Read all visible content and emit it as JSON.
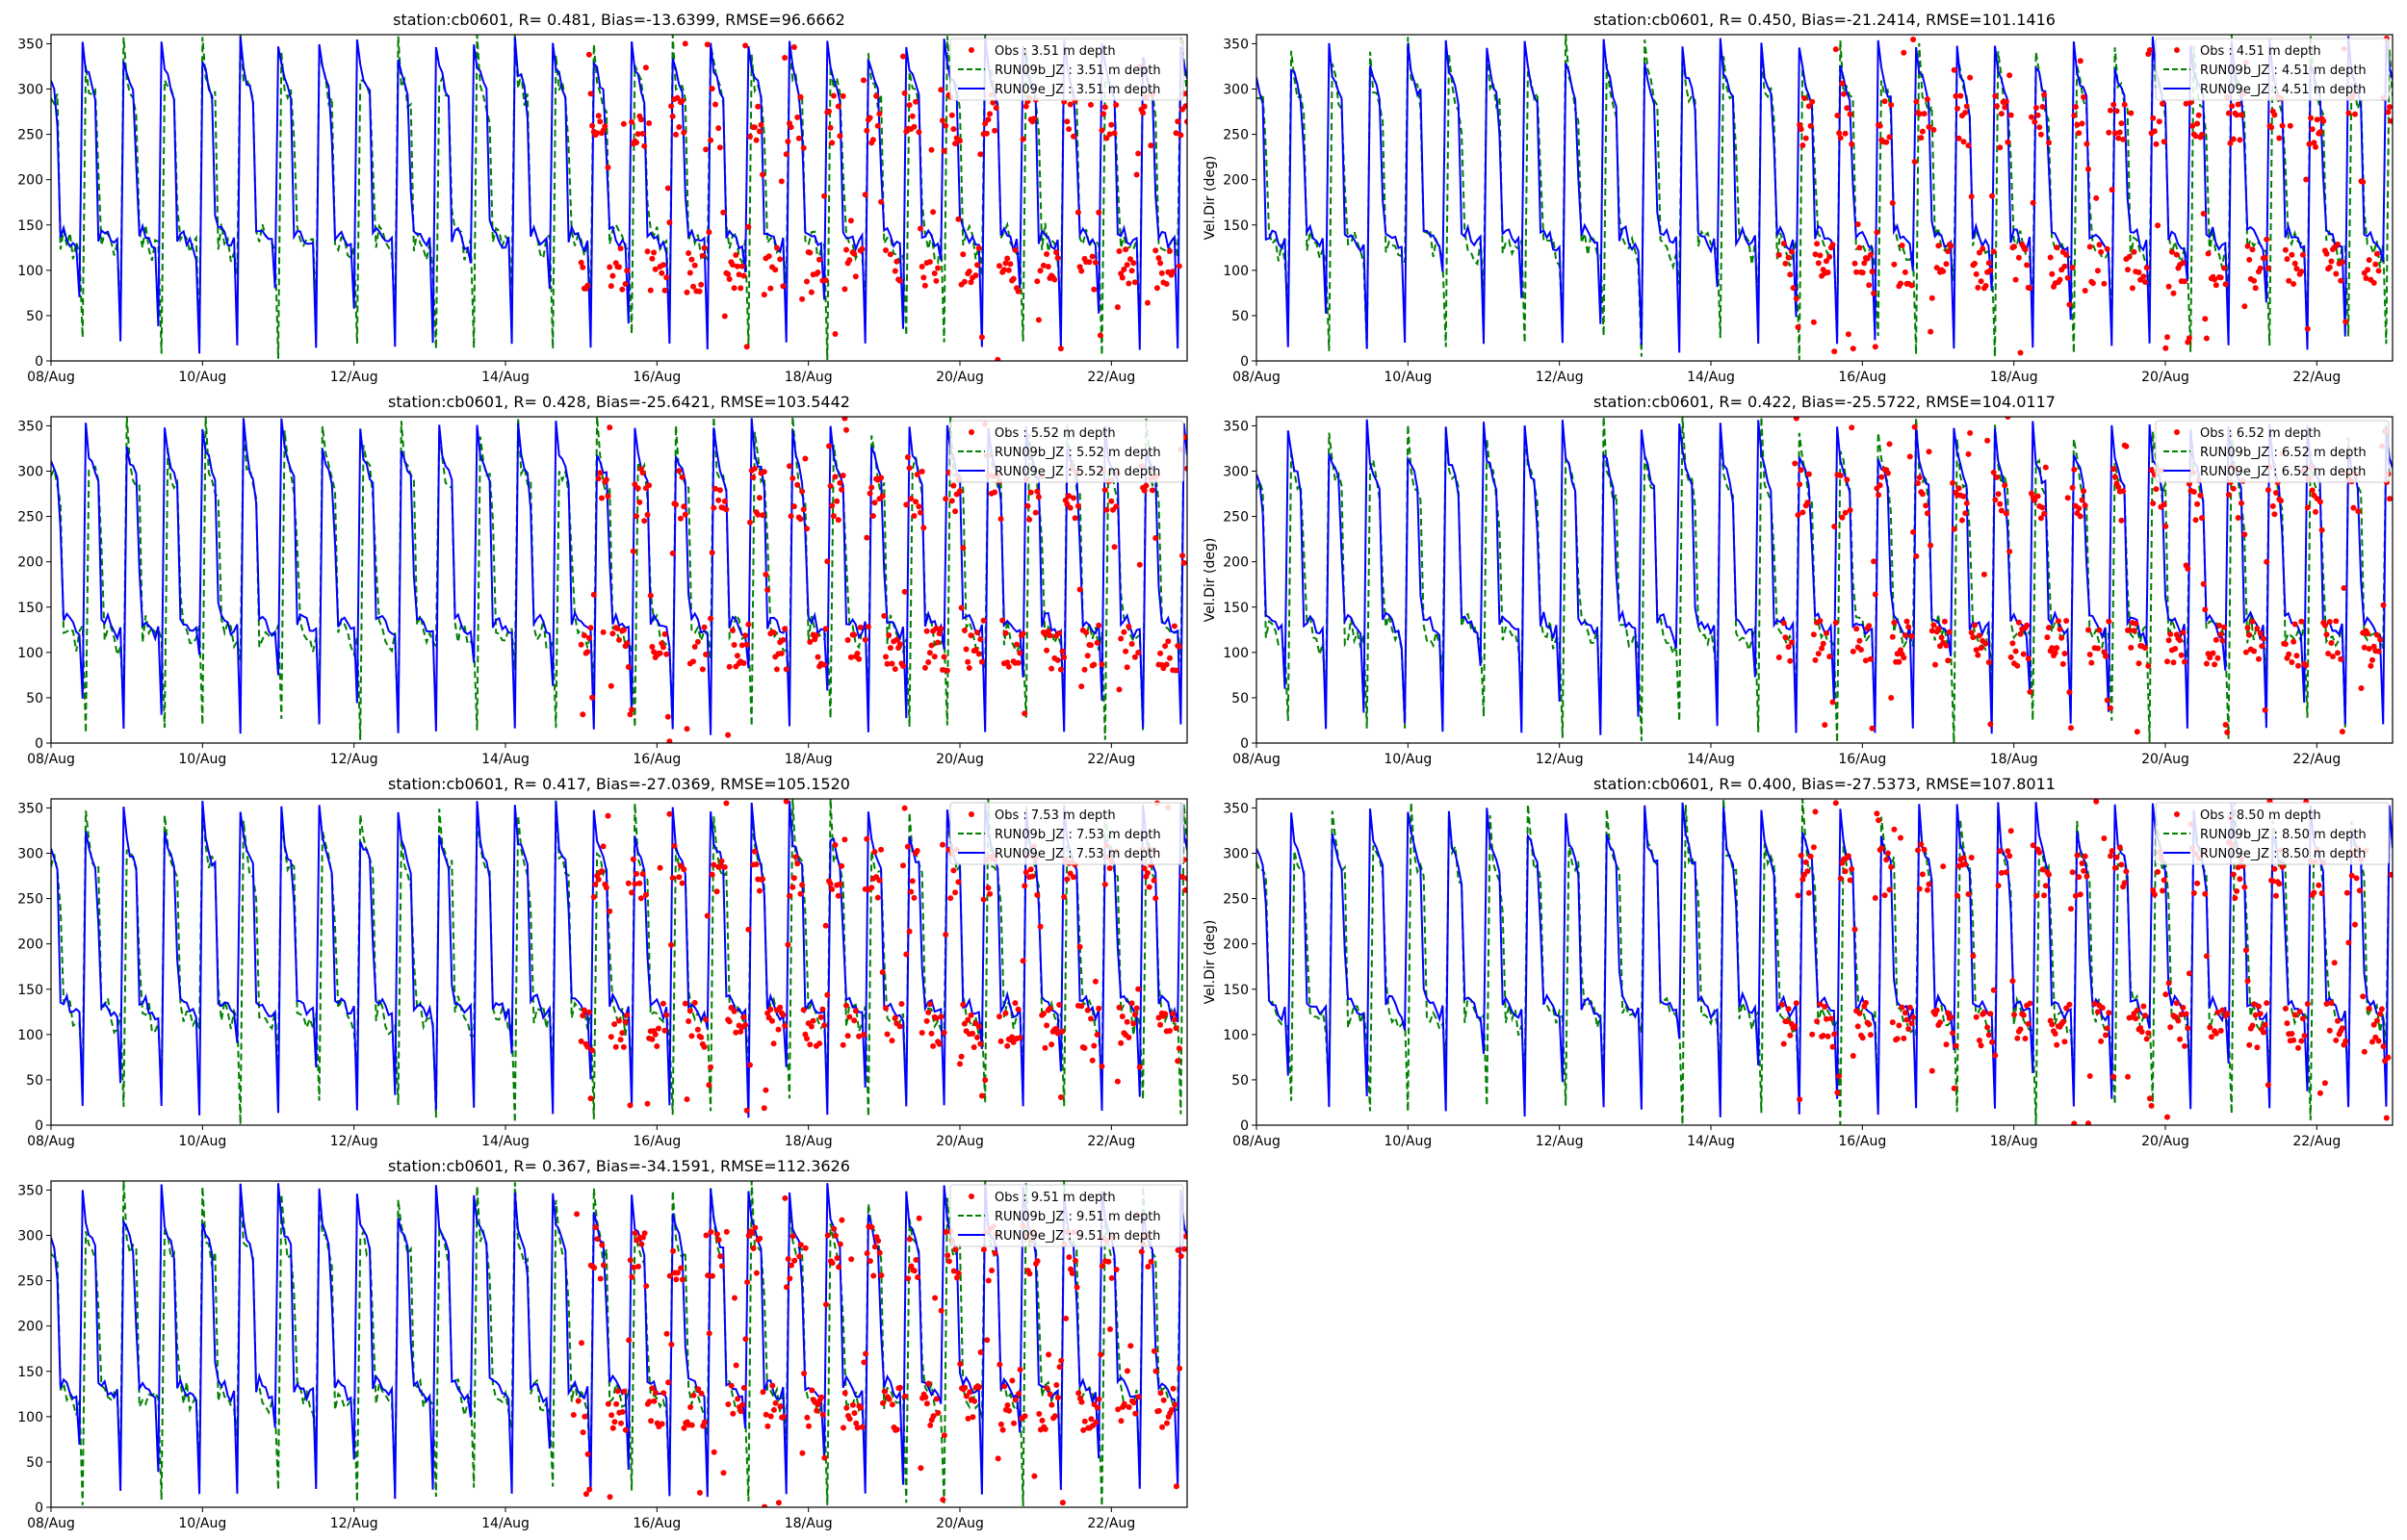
{
  "figure": {
    "background": "#ffffff"
  },
  "colors": {
    "obs": "#ff0000",
    "run09b": "#008000",
    "run09e": "#0000ff",
    "axis": "#000000"
  },
  "chart_data": [
    {
      "type": "line",
      "title": "station:cb0601, R= 0.481, Bias=-13.6399, RMSE=96.6662",
      "xlabel": "",
      "ylabel": "",
      "ylim": [
        0,
        360
      ],
      "yticks": [
        "0",
        "50",
        "100",
        "150",
        "200",
        "250",
        "300",
        "350"
      ],
      "xticks": [
        "08/Aug",
        "10/Aug",
        "12/Aug",
        "14/Aug",
        "16/Aug",
        "18/Aug",
        "20/Aug",
        "22/Aug"
      ],
      "xrange_days": [
        8,
        23
      ],
      "obs_start_day": 15.0,
      "legend": [
        "Obs : 3.51 m depth",
        "RUN09b_JZ : 3.51 m depth",
        "RUN09e_JZ : 3.51 m depth"
      ],
      "legend_position": "top-right",
      "series": [
        {
          "name": "Obs : 3.51 m depth",
          "style": "dots",
          "flood_deg": 265,
          "ebb_deg": 100
        },
        {
          "name": "RUN09b_JZ : 3.51 m depth",
          "style": "dashed",
          "flood_deg": 300,
          "ebb_deg": 130
        },
        {
          "name": "RUN09e_JZ : 3.51 m depth",
          "style": "solid",
          "flood_deg": 310,
          "ebb_deg": 135
        }
      ],
      "seed": 11
    },
    {
      "type": "line",
      "title": "station:cb0601, R= 0.450, Bias=-21.2414, RMSE=101.1416",
      "xlabel": "",
      "ylabel": "Vel.Dir (deg)",
      "ylim": [
        0,
        360
      ],
      "yticks": [
        "0",
        "50",
        "100",
        "150",
        "200",
        "250",
        "300",
        "350"
      ],
      "xticks": [
        "08/Aug",
        "10/Aug",
        "12/Aug",
        "14/Aug",
        "16/Aug",
        "18/Aug",
        "20/Aug",
        "22/Aug"
      ],
      "xrange_days": [
        8,
        23
      ],
      "obs_start_day": 14.9,
      "legend": [
        "Obs : 4.51 m depth",
        "RUN09b_JZ : 4.51 m depth",
        "RUN09e_JZ : 4.51 m depth"
      ],
      "legend_position": "top-right",
      "series": [
        {
          "name": "Obs : 4.51 m depth",
          "style": "dots",
          "flood_deg": 265,
          "ebb_deg": 105
        },
        {
          "name": "RUN09b_JZ : 4.51 m depth",
          "style": "dashed",
          "flood_deg": 295,
          "ebb_deg": 125
        },
        {
          "name": "RUN09e_JZ : 4.51 m depth",
          "style": "solid",
          "flood_deg": 305,
          "ebb_deg": 135
        }
      ],
      "seed": 23
    },
    {
      "type": "line",
      "title": "station:cb0601, R= 0.428, Bias=-25.6421, RMSE=103.5442",
      "xlabel": "",
      "ylabel": "",
      "ylim": [
        0,
        360
      ],
      "yticks": [
        "0",
        "50",
        "100",
        "150",
        "200",
        "250",
        "300",
        "350"
      ],
      "xticks": [
        "08/Aug",
        "10/Aug",
        "12/Aug",
        "14/Aug",
        "16/Aug",
        "18/Aug",
        "20/Aug",
        "22/Aug"
      ],
      "xrange_days": [
        8,
        23
      ],
      "obs_start_day": 15.0,
      "legend": [
        "Obs : 5.52 m depth",
        "RUN09b_JZ : 5.52 m depth",
        "RUN09e_JZ : 5.52 m depth"
      ],
      "legend_position": "top-right",
      "series": [
        {
          "name": "Obs : 5.52 m depth",
          "style": "dots",
          "flood_deg": 275,
          "ebb_deg": 105
        },
        {
          "name": "RUN09b_JZ : 5.52 m depth",
          "style": "dashed",
          "flood_deg": 295,
          "ebb_deg": 120
        },
        {
          "name": "RUN09e_JZ : 5.52 m depth",
          "style": "solid",
          "flood_deg": 305,
          "ebb_deg": 130
        }
      ],
      "seed": 37
    },
    {
      "type": "line",
      "title": "station:cb0601, R= 0.422, Bias=-25.5722, RMSE=104.0117",
      "xlabel": "",
      "ylabel": "Vel.Dir (deg)",
      "ylim": [
        0,
        360
      ],
      "yticks": [
        "0",
        "50",
        "100",
        "150",
        "200",
        "250",
        "300",
        "350"
      ],
      "xticks": [
        "08/Aug",
        "10/Aug",
        "12/Aug",
        "14/Aug",
        "16/Aug",
        "18/Aug",
        "20/Aug",
        "22/Aug"
      ],
      "xrange_days": [
        8,
        23
      ],
      "obs_start_day": 14.9,
      "legend": [
        "Obs : 6.52 m depth",
        "RUN09b_JZ : 6.52 m depth",
        "RUN09e_JZ : 6.52 m depth"
      ],
      "legend_position": "top-right",
      "series": [
        {
          "name": "Obs : 6.52 m depth",
          "style": "dots",
          "flood_deg": 275,
          "ebb_deg": 110
        },
        {
          "name": "RUN09b_JZ : 6.52 m depth",
          "style": "dashed",
          "flood_deg": 290,
          "ebb_deg": 120
        },
        {
          "name": "RUN09e_JZ : 6.52 m depth",
          "style": "solid",
          "flood_deg": 300,
          "ebb_deg": 130
        }
      ],
      "seed": 41
    },
    {
      "type": "line",
      "title": "station:cb0601, R= 0.417, Bias=-27.0369, RMSE=105.1520",
      "xlabel": "",
      "ylabel": "",
      "ylim": [
        0,
        360
      ],
      "yticks": [
        "0",
        "50",
        "100",
        "150",
        "200",
        "250",
        "300",
        "350"
      ],
      "xticks": [
        "08/Aug",
        "10/Aug",
        "12/Aug",
        "14/Aug",
        "16/Aug",
        "18/Aug",
        "20/Aug",
        "22/Aug"
      ],
      "xrange_days": [
        8,
        23
      ],
      "obs_start_day": 15.0,
      "legend": [
        "Obs : 7.53 m depth",
        "RUN09b_JZ : 7.53 m depth",
        "RUN09e_JZ : 7.53 m depth"
      ],
      "legend_position": "top-right",
      "series": [
        {
          "name": "Obs : 7.53 m depth",
          "style": "dots",
          "flood_deg": 280,
          "ebb_deg": 110
        },
        {
          "name": "RUN09b_JZ : 7.53 m depth",
          "style": "dashed",
          "flood_deg": 290,
          "ebb_deg": 120
        },
        {
          "name": "RUN09e_JZ : 7.53 m depth",
          "style": "solid",
          "flood_deg": 300,
          "ebb_deg": 130
        }
      ],
      "seed": 53
    },
    {
      "type": "line",
      "title": "station:cb0601, R= 0.400, Bias=-27.5373, RMSE=107.8011",
      "xlabel": "",
      "ylabel": "Vel.Dir (deg)",
      "ylim": [
        0,
        360
      ],
      "yticks": [
        "0",
        "50",
        "100",
        "150",
        "200",
        "250",
        "300",
        "350"
      ],
      "xticks": [
        "08/Aug",
        "10/Aug",
        "12/Aug",
        "14/Aug",
        "16/Aug",
        "18/Aug",
        "20/Aug",
        "22/Aug"
      ],
      "xrange_days": [
        8,
        23
      ],
      "obs_start_day": 14.9,
      "legend": [
        "Obs : 8.50 m depth",
        "RUN09b_JZ : 8.50 m depth",
        "RUN09e_JZ : 8.50 m depth"
      ],
      "legend_position": "top-right",
      "series": [
        {
          "name": "Obs : 8.50 m depth",
          "style": "dots",
          "flood_deg": 280,
          "ebb_deg": 110
        },
        {
          "name": "RUN09b_JZ : 8.50 m depth",
          "style": "dashed",
          "flood_deg": 290,
          "ebb_deg": 120
        },
        {
          "name": "RUN09e_JZ : 8.50 m depth",
          "style": "solid",
          "flood_deg": 300,
          "ebb_deg": 130
        }
      ],
      "seed": 67
    },
    {
      "type": "line",
      "title": "station:cb0601, R= 0.367, Bias=-34.1591, RMSE=112.3626",
      "xlabel": "",
      "ylabel": "",
      "ylim": [
        0,
        360
      ],
      "yticks": [
        "0",
        "50",
        "100",
        "150",
        "200",
        "250",
        "300",
        "350"
      ],
      "xticks": [
        "08/Aug",
        "10/Aug",
        "12/Aug",
        "14/Aug",
        "16/Aug",
        "18/Aug",
        "20/Aug",
        "22/Aug"
      ],
      "xrange_days": [
        8,
        23
      ],
      "obs_start_day": 14.9,
      "legend": [
        "Obs : 9.51 m depth",
        "RUN09b_JZ : 9.51 m depth",
        "RUN09e_JZ : 9.51 m depth"
      ],
      "legend_position": "top-right",
      "series": [
        {
          "name": "Obs : 9.51 m depth",
          "style": "dots",
          "flood_deg": 280,
          "ebb_deg": 110
        },
        {
          "name": "RUN09b_JZ : 9.51 m depth",
          "style": "dashed",
          "flood_deg": 290,
          "ebb_deg": 120
        },
        {
          "name": "RUN09e_JZ : 9.51 m depth",
          "style": "solid",
          "flood_deg": 300,
          "ebb_deg": 130
        }
      ],
      "seed": 79
    }
  ]
}
